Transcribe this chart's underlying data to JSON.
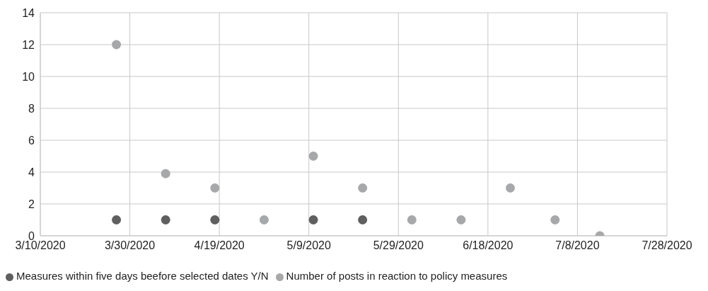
{
  "chart_data": {
    "type": "scatter",
    "marker": "circle",
    "grid": true,
    "legend": "bottom",
    "ylim": [
      0,
      14
    ],
    "yticks": [
      0,
      2,
      4,
      6,
      8,
      10,
      12,
      14
    ],
    "xlim": [
      "2020-03-10",
      "2020-07-28"
    ],
    "xticks": [
      {
        "value": "2020-03-10",
        "label": "3/10/2020"
      },
      {
        "value": "2020-03-30",
        "label": "3/30/2020"
      },
      {
        "value": "2020-04-19",
        "label": "4/19/2020"
      },
      {
        "value": "2020-05-09",
        "label": "5/9/2020"
      },
      {
        "value": "2020-05-29",
        "label": "5/29/2020"
      },
      {
        "value": "2020-06-18",
        "label": "6/18/2020"
      },
      {
        "value": "2020-07-08",
        "label": "7/8/2020"
      },
      {
        "value": "2020-07-28",
        "label": "7/28/2020"
      }
    ],
    "series": [
      {
        "name": "Measures within five days beefore selected dates Y/N",
        "color": "#5f5f60",
        "x": [
          "2020-03-27",
          "2020-04-07",
          "2020-04-18",
          "2020-05-10",
          "2020-05-21"
        ],
        "values": [
          1,
          1,
          1,
          1,
          1
        ]
      },
      {
        "name": "Number of posts in reaction to policy measures",
        "color": "#a7a8aa",
        "x": [
          "2020-03-27",
          "2020-04-07",
          "2020-04-18",
          "2020-04-29",
          "2020-05-10",
          "2020-05-21",
          "2020-06-01",
          "2020-06-12",
          "2020-06-23",
          "2020-07-03",
          "2020-07-13"
        ],
        "values": [
          12,
          3.9,
          3,
          1,
          5,
          3,
          1,
          1,
          3,
          1,
          0
        ]
      }
    ]
  }
}
